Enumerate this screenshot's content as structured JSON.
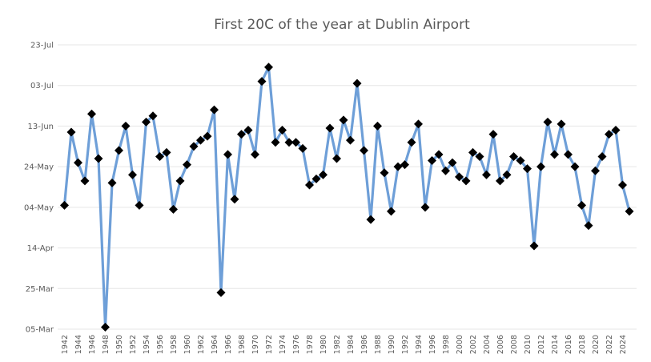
{
  "chart_data": {
    "type": "line",
    "title": "First 20C of the year at Dublin Airport",
    "xlabel": "",
    "ylabel": "",
    "x": [
      1942,
      1943,
      1944,
      1945,
      1946,
      1947,
      1948,
      1949,
      1950,
      1951,
      1952,
      1953,
      1954,
      1955,
      1956,
      1957,
      1958,
      1959,
      1960,
      1961,
      1962,
      1963,
      1964,
      1965,
      1966,
      1967,
      1968,
      1969,
      1970,
      1971,
      1972,
      1973,
      1974,
      1975,
      1976,
      1977,
      1978,
      1979,
      1980,
      1981,
      1982,
      1983,
      1984,
      1985,
      1986,
      1987,
      1988,
      1989,
      1990,
      1991,
      1992,
      1993,
      1994,
      1995,
      1996,
      1997,
      1998,
      1999,
      2000,
      2001,
      2002,
      2003,
      2004,
      2005,
      2006,
      2007,
      2008,
      2009,
      2010,
      2011,
      2012,
      2013,
      2014,
      2015,
      2016,
      2017,
      2018,
      2019,
      2020,
      2021,
      2022,
      2023,
      2024,
      2025
    ],
    "x_tick_labels": [
      "1942",
      "1944",
      "1946",
      "1948",
      "1950",
      "1952",
      "1954",
      "1956",
      "1958",
      "1960",
      "1962",
      "1964",
      "1966",
      "1968",
      "1970",
      "1972",
      "1974",
      "1976",
      "1978",
      "1980",
      "1982",
      "1984",
      "1986",
      "1988",
      "1990",
      "1992",
      "1994",
      "1996",
      "1998",
      "2000",
      "2002",
      "2004",
      "2006",
      "2008",
      "2010",
      "2012",
      "2014",
      "2016",
      "2018",
      "2020",
      "2022",
      "2024"
    ],
    "series": [
      {
        "values": [
          "05-May",
          "10-Jun",
          "26-May",
          "17-May",
          "19-Jun",
          "28-May",
          "06-Mar",
          "16-May",
          "01-Jun",
          "13-Jun",
          "20-May",
          "05-May",
          "15-Jun",
          "18-Jun",
          "29-May",
          "31-May",
          "03-May",
          "17-May",
          "25-May",
          "03-Jun",
          "06-Jun",
          "08-Jun",
          "21-Jun",
          "23-Mar",
          "30-May",
          "08-May",
          "09-Jun",
          "11-Jun",
          "30-May",
          "05-Jul",
          "12-Jul",
          "05-Jun",
          "11-Jun",
          "05-Jun",
          "05-Jun",
          "02-Jun",
          "15-May",
          "18-May",
          "20-May",
          "12-Jun",
          "28-May",
          "16-Jun",
          "06-Jun",
          "04-Jul",
          "01-Jun",
          "28-Apr",
          "13-Jun",
          "21-May",
          "02-May",
          "24-May",
          "25-May",
          "05-Jun",
          "14-Jun",
          "04-May",
          "27-May",
          "30-May",
          "22-May",
          "26-May",
          "19-May",
          "17-May",
          "31-May",
          "29-May",
          "20-May",
          "09-Jun",
          "17-May",
          "20-May",
          "29-May",
          "27-May",
          "23-May",
          "15-Apr",
          "24-May",
          "15-Jun",
          "30-May",
          "14-Jun",
          "30-May",
          "24-May",
          "05-May",
          "25-Apr",
          "22-May",
          "29-May",
          "09-Jun",
          "11-Jun",
          "15-May",
          "02-May"
        ]
      }
    ],
    "ylim": [
      "05-Mar",
      "23-Jul"
    ],
    "y_tick_labels": [
      "05-Mar",
      "25-Mar",
      "14-Apr",
      "04-May",
      "24-May",
      "13-Jun",
      "03-Jul",
      "23-Jul"
    ],
    "grid": true,
    "legend": "none",
    "colors": {
      "line": "#6e9fd8",
      "marker": "#000000",
      "grid": "#e6e6e6",
      "text": "#595959"
    }
  }
}
